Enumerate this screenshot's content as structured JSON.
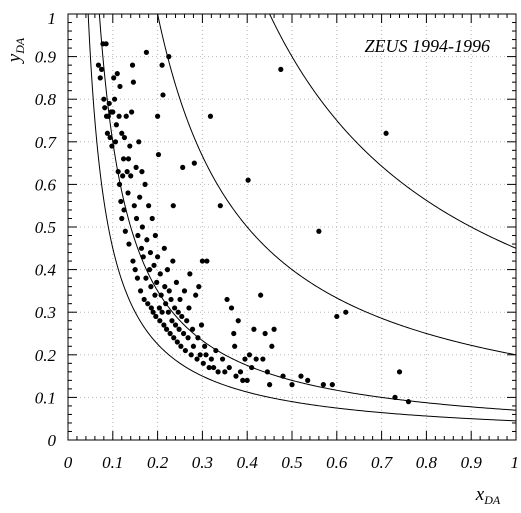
{
  "chart_data": {
    "type": "scatter",
    "annotation": "ZEUS 1994-1996",
    "xlabel": {
      "main": "x",
      "sub": "DA"
    },
    "ylabel": {
      "main": "y",
      "sub": "DA"
    },
    "xlim": [
      0,
      1
    ],
    "ylim": [
      0,
      1
    ],
    "xticks": [
      "0",
      "0.1",
      "0.2",
      "0.3",
      "0.4",
      "0.5",
      "0.6",
      "0.7",
      "0.8",
      "0.9",
      "1"
    ],
    "yticks": [
      "0",
      "0.1",
      "0.2",
      "0.3",
      "0.4",
      "0.5",
      "0.6",
      "0.7",
      "0.8",
      "0.9",
      "1"
    ],
    "grid": true,
    "colors": {
      "points": "#000000",
      "curves": "#000000",
      "grid": "#b8b8b8"
    },
    "curves_xy_constant": [
      0.045,
      0.07,
      0.2,
      0.45
    ],
    "points": [
      [
        0.068,
        0.88
      ],
      [
        0.072,
        0.85
      ],
      [
        0.075,
        0.87
      ],
      [
        0.078,
        0.93
      ],
      [
        0.08,
        0.8
      ],
      [
        0.082,
        0.78
      ],
      [
        0.085,
        0.93
      ],
      [
        0.086,
        0.76
      ],
      [
        0.088,
        0.72
      ],
      [
        0.09,
        0.76
      ],
      [
        0.092,
        0.79
      ],
      [
        0.094,
        0.71
      ],
      [
        0.096,
        0.77
      ],
      [
        0.098,
        0.69
      ],
      [
        0.1,
        0.77
      ],
      [
        0.102,
        0.85
      ],
      [
        0.104,
        0.8
      ],
      [
        0.106,
        0.7
      ],
      [
        0.108,
        0.74
      ],
      [
        0.11,
        0.86
      ],
      [
        0.112,
        0.63
      ],
      [
        0.114,
        0.76
      ],
      [
        0.115,
        0.6
      ],
      [
        0.116,
        0.83
      ],
      [
        0.118,
        0.56
      ],
      [
        0.12,
        0.72
      ],
      [
        0.12,
        0.52
      ],
      [
        0.122,
        0.62
      ],
      [
        0.124,
        0.66
      ],
      [
        0.125,
        0.54
      ],
      [
        0.126,
        0.71
      ],
      [
        0.128,
        0.49
      ],
      [
        0.13,
        0.76
      ],
      [
        0.132,
        0.63
      ],
      [
        0.134,
        0.58
      ],
      [
        0.135,
        0.66
      ],
      [
        0.136,
        0.46
      ],
      [
        0.138,
        0.69
      ],
      [
        0.14,
        0.62
      ],
      [
        0.142,
        0.77
      ],
      [
        0.144,
        0.88
      ],
      [
        0.145,
        0.42
      ],
      [
        0.146,
        0.84
      ],
      [
        0.148,
        0.55
      ],
      [
        0.15,
        0.4
      ],
      [
        0.152,
        0.64
      ],
      [
        0.153,
        0.52
      ],
      [
        0.155,
        0.38
      ],
      [
        0.156,
        0.48
      ],
      [
        0.158,
        0.7
      ],
      [
        0.16,
        0.57
      ],
      [
        0.162,
        0.35
      ],
      [
        0.164,
        0.45
      ],
      [
        0.165,
        0.63
      ],
      [
        0.166,
        0.5
      ],
      [
        0.168,
        0.43
      ],
      [
        0.17,
        0.33
      ],
      [
        0.172,
        0.6
      ],
      [
        0.174,
        0.38
      ],
      [
        0.175,
        0.91
      ],
      [
        0.176,
        0.47
      ],
      [
        0.178,
        0.32
      ],
      [
        0.18,
        0.55
      ],
      [
        0.182,
        0.4
      ],
      [
        0.184,
        0.44
      ],
      [
        0.185,
        0.36
      ],
      [
        0.186,
        0.31
      ],
      [
        0.188,
        0.52
      ],
      [
        0.19,
        0.3
      ],
      [
        0.192,
        0.41
      ],
      [
        0.194,
        0.34
      ],
      [
        0.195,
        0.48
      ],
      [
        0.196,
        0.29
      ],
      [
        0.198,
        0.37
      ],
      [
        0.2,
        0.76
      ],
      [
        0.2,
        0.43
      ],
      [
        0.202,
        0.67
      ],
      [
        0.204,
        0.31
      ],
      [
        0.205,
        0.28
      ],
      [
        0.206,
        0.39
      ],
      [
        0.208,
        0.34
      ],
      [
        0.21,
        0.88
      ],
      [
        0.21,
        0.3
      ],
      [
        0.212,
        0.81
      ],
      [
        0.214,
        0.27
      ],
      [
        0.215,
        0.45
      ],
      [
        0.216,
        0.36
      ],
      [
        0.218,
        0.32
      ],
      [
        0.22,
        0.26
      ],
      [
        0.222,
        0.4
      ],
      [
        0.224,
        0.3
      ],
      [
        0.225,
        0.9
      ],
      [
        0.226,
        0.35
      ],
      [
        0.228,
        0.25
      ],
      [
        0.23,
        0.33
      ],
      [
        0.232,
        0.28
      ],
      [
        0.234,
        0.42
      ],
      [
        0.235,
        0.55
      ],
      [
        0.236,
        0.24
      ],
      [
        0.238,
        0.31
      ],
      [
        0.24,
        0.27
      ],
      [
        0.242,
        0.37
      ],
      [
        0.244,
        0.23
      ],
      [
        0.246,
        0.3
      ],
      [
        0.248,
        0.26
      ],
      [
        0.25,
        0.33
      ],
      [
        0.252,
        0.22
      ],
      [
        0.254,
        0.29
      ],
      [
        0.256,
        0.64
      ],
      [
        0.258,
        0.25
      ],
      [
        0.26,
        0.35
      ],
      [
        0.262,
        0.21
      ],
      [
        0.265,
        0.28
      ],
      [
        0.268,
        0.24
      ],
      [
        0.27,
        0.31
      ],
      [
        0.272,
        0.39
      ],
      [
        0.275,
        0.2
      ],
      [
        0.278,
        0.26
      ],
      [
        0.28,
        0.22
      ],
      [
        0.282,
        0.65
      ],
      [
        0.285,
        0.34
      ],
      [
        0.288,
        0.19
      ],
      [
        0.29,
        0.24
      ],
      [
        0.292,
        0.36
      ],
      [
        0.295,
        0.2
      ],
      [
        0.298,
        0.27
      ],
      [
        0.3,
        0.42
      ],
      [
        0.302,
        0.18
      ],
      [
        0.305,
        0.22
      ],
      [
        0.308,
        0.2
      ],
      [
        0.31,
        0.42
      ],
      [
        0.315,
        0.17
      ],
      [
        0.318,
        0.76
      ],
      [
        0.32,
        0.19
      ],
      [
        0.325,
        0.17
      ],
      [
        0.33,
        0.21
      ],
      [
        0.335,
        0.16
      ],
      [
        0.34,
        0.55
      ],
      [
        0.345,
        0.19
      ],
      [
        0.35,
        0.16
      ],
      [
        0.355,
        0.33
      ],
      [
        0.36,
        0.17
      ],
      [
        0.365,
        0.31
      ],
      [
        0.37,
        0.25
      ],
      [
        0.372,
        0.22
      ],
      [
        0.375,
        0.15
      ],
      [
        0.38,
        0.28
      ],
      [
        0.385,
        0.16
      ],
      [
        0.39,
        0.14
      ],
      [
        0.395,
        0.19
      ],
      [
        0.4,
        0.14
      ],
      [
        0.402,
        0.61
      ],
      [
        0.405,
        0.2
      ],
      [
        0.41,
        0.17
      ],
      [
        0.415,
        0.26
      ],
      [
        0.42,
        0.19
      ],
      [
        0.43,
        0.34
      ],
      [
        0.435,
        0.19
      ],
      [
        0.44,
        0.25
      ],
      [
        0.445,
        0.16
      ],
      [
        0.45,
        0.13
      ],
      [
        0.455,
        0.22
      ],
      [
        0.46,
        0.26
      ],
      [
        0.475,
        0.87
      ],
      [
        0.48,
        0.15
      ],
      [
        0.5,
        0.13
      ],
      [
        0.52,
        0.15
      ],
      [
        0.535,
        0.14
      ],
      [
        0.56,
        0.49
      ],
      [
        0.57,
        0.13
      ],
      [
        0.59,
        0.13
      ],
      [
        0.6,
        0.29
      ],
      [
        0.62,
        0.3
      ],
      [
        0.71,
        0.72
      ],
      [
        0.73,
        0.1
      ],
      [
        0.74,
        0.16
      ],
      [
        0.76,
        0.09
      ]
    ]
  }
}
